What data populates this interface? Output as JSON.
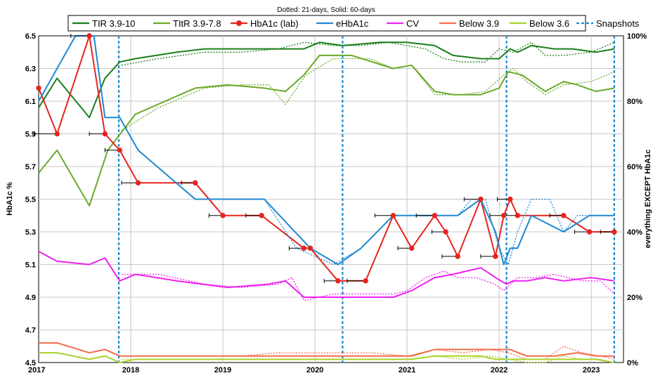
{
  "chart_data": {
    "type": "line",
    "title": "",
    "subtitle": "Dotted: 21-days, Solid: 60-days",
    "xlabel": "",
    "ylabel": "HbA1c %",
    "y2label": "everything EXCEPT HbA1c",
    "xlim": [
      2017.0,
      2023.35
    ],
    "ylim": [
      4.5,
      6.5
    ],
    "y2lim": [
      0,
      100
    ],
    "x_ticks": [
      2017,
      2018,
      2019,
      2020,
      2021,
      2022,
      2023
    ],
    "x_tick_labels": [
      "2017",
      "2018",
      "2019",
      "2020",
      "2021",
      "2022",
      "2023"
    ],
    "y_ticks": [
      4.5,
      4.7,
      4.9,
      5.1,
      5.3,
      5.5,
      5.7,
      5.9,
      6.1,
      6.3,
      6.5
    ],
    "y_tick_labels": [
      "4.5",
      "4.7",
      "4.9",
      "5.1",
      "5.3",
      "5.5",
      "5.7",
      "5.9",
      "6.1",
      "6.3",
      "6.5"
    ],
    "y2_ticks": [
      0,
      20,
      40,
      60,
      80,
      100
    ],
    "y2_tick_labels": [
      "0%",
      "20%",
      "40%",
      "60%",
      "80%",
      "100%"
    ],
    "grid": true,
    "legend_position": "top",
    "series": [
      {
        "name": "TIR 3.9-10",
        "color": "#1a7f1a",
        "axis": "right",
        "x": [
          2017.0,
          2017.2,
          2017.55,
          2017.72,
          2017.88,
          2018.05,
          2018.5,
          2018.8,
          2019.05,
          2019.5,
          2019.68,
          2019.88,
          2020.05,
          2020.3,
          2020.7,
          2021.0,
          2021.3,
          2021.5,
          2021.8,
          2022.0,
          2022.12,
          2022.2,
          2022.35,
          2022.6,
          2022.8,
          2023.05,
          2023.25
        ],
        "values": [
          78,
          87,
          75,
          87,
          92,
          93,
          95,
          96,
          96,
          96,
          96,
          96,
          98,
          97,
          98,
          98,
          97,
          94,
          93,
          93,
          96,
          95,
          97,
          96,
          96,
          95,
          96
        ],
        "dotted_x": [
          2017.9,
          2018.3,
          2018.8,
          2019.2,
          2019.6,
          2019.88,
          2020.2,
          2020.5,
          2020.8,
          2021.0,
          2021.2,
          2021.4,
          2021.6,
          2021.85,
          2022.0,
          2022.15,
          2022.35,
          2022.5,
          2022.7,
          2023.0,
          2023.25
        ],
        "dotted_values": [
          91,
          93,
          95,
          95,
          96,
          98,
          97,
          97,
          98,
          97,
          96,
          93,
          92,
          92,
          96,
          95,
          98,
          94,
          94,
          95,
          98
        ]
      },
      {
        "name": "TItR 3.9-7.8",
        "color": "#6aaa2a",
        "axis": "right",
        "x": [
          2017.0,
          2017.2,
          2017.55,
          2017.75,
          2018.05,
          2018.7,
          2019.05,
          2019.45,
          2019.68,
          2019.88,
          2020.05,
          2020.4,
          2020.85,
          2021.05,
          2021.3,
          2021.5,
          2021.8,
          2022.0,
          2022.1,
          2022.25,
          2022.5,
          2022.7,
          2022.85,
          2023.05,
          2023.25
        ],
        "values": [
          58,
          65,
          48,
          65,
          76,
          84,
          85,
          84,
          83,
          88,
          94,
          94,
          90,
          91,
          83,
          82,
          82,
          84,
          89,
          88,
          83,
          86,
          85,
          83,
          84
        ],
        "dotted_x": [
          2017.9,
          2018.3,
          2018.8,
          2019.2,
          2019.5,
          2019.68,
          2019.9,
          2020.2,
          2020.6,
          2020.85,
          2021.05,
          2021.3,
          2021.6,
          2021.85,
          2022.05,
          2022.15,
          2022.3,
          2022.5,
          2022.7,
          2023.0,
          2023.25
        ],
        "dotted_values": [
          71,
          78,
          84,
          85,
          85,
          79,
          88,
          93,
          93,
          90,
          91,
          82,
          82,
          83,
          88,
          90,
          86,
          82,
          85,
          86,
          89
        ]
      },
      {
        "name": "HbA1c (lab)",
        "color": "#e8231e",
        "axis": "left",
        "markers": true,
        "x": [
          2017.0,
          2017.2,
          2017.55,
          2017.72,
          2017.88,
          2018.08,
          2018.7,
          2019.0,
          2019.42,
          2019.88,
          2019.95,
          2020.25,
          2020.55,
          2020.85,
          2021.05,
          2021.3,
          2021.42,
          2021.55,
          2021.8,
          2021.96,
          2022.05,
          2022.12,
          2022.2,
          2022.7,
          2022.98,
          2023.25
        ],
        "values": [
          6.18,
          5.9,
          6.5,
          5.9,
          5.8,
          5.6,
          5.6,
          5.4,
          5.4,
          5.2,
          5.2,
          5.0,
          5.0,
          5.4,
          5.2,
          5.4,
          5.3,
          5.15,
          5.5,
          5.15,
          5.4,
          5.5,
          5.4,
          5.4,
          5.3,
          5.3
        ]
      },
      {
        "name": "eHbA1c",
        "color": "#1f88d0",
        "axis": "left",
        "x": [
          2017.0,
          2017.2,
          2017.4,
          2017.6,
          2017.72,
          2017.88,
          2018.08,
          2018.7,
          2019.0,
          2019.45,
          2019.95,
          2020.25,
          2020.5,
          2020.85,
          2021.3,
          2021.55,
          2021.8,
          2021.96,
          2022.05,
          2022.12,
          2022.2,
          2022.35,
          2022.7,
          2022.98,
          2023.25
        ],
        "values": [
          6.1,
          6.3,
          6.5,
          6.5,
          6.0,
          6.0,
          5.8,
          5.5,
          5.5,
          5.5,
          5.2,
          5.1,
          5.2,
          5.4,
          5.4,
          5.4,
          5.5,
          5.3,
          5.1,
          5.2,
          5.2,
          5.4,
          5.3,
          5.4,
          5.4
        ],
        "dotted_x": [
          2018.7,
          2019.0,
          2019.45,
          2019.8,
          2020.2,
          2020.5,
          2020.85,
          2021.3,
          2021.55,
          2021.7,
          2021.85,
          2022.0,
          2022.1,
          2022.2,
          2022.35,
          2022.55,
          2022.7,
          2022.85,
          2023.0,
          2023.25
        ],
        "dotted_values": [
          5.5,
          5.5,
          5.5,
          5.2,
          5.1,
          5.2,
          5.4,
          5.4,
          5.4,
          5.5,
          5.5,
          5.2,
          5.1,
          5.3,
          5.5,
          5.5,
          5.3,
          5.4,
          5.4,
          5.4
        ]
      },
      {
        "name": "CV",
        "color": "#ee22ee",
        "axis": "right",
        "x": [
          2017.0,
          2017.2,
          2017.55,
          2017.72,
          2017.88,
          2018.05,
          2018.5,
          2019.05,
          2019.5,
          2019.68,
          2019.88,
          2020.05,
          2020.4,
          2020.85,
          2021.05,
          2021.3,
          2021.5,
          2021.8,
          2021.96,
          2022.08,
          2022.15,
          2022.3,
          2022.5,
          2022.7,
          2023.0,
          2023.25
        ],
        "values": [
          34,
          31,
          30,
          32,
          25,
          27,
          25,
          23,
          24,
          25,
          20,
          20,
          20,
          20,
          22,
          26,
          27,
          29,
          26,
          24,
          25,
          25,
          26,
          25,
          26,
          25
        ],
        "dotted_x": [
          2017.9,
          2018.3,
          2018.8,
          2019.2,
          2019.6,
          2019.75,
          2019.88,
          2020.2,
          2020.5,
          2020.85,
          2021.0,
          2021.2,
          2021.4,
          2021.55,
          2021.75,
          2021.95,
          2022.05,
          2022.2,
          2022.4,
          2022.6,
          2022.9,
          2023.1,
          2023.25
        ],
        "dotted_values": [
          27,
          27,
          24,
          23,
          24,
          26,
          19,
          21,
          21,
          21,
          22,
          26,
          28,
          26,
          26,
          24,
          22,
          26,
          26,
          27,
          25,
          25,
          21
        ]
      },
      {
        "name": "Below 3.9",
        "color": "#f26d4a",
        "axis": "right",
        "x": [
          2017.0,
          2017.2,
          2017.55,
          2017.72,
          2017.88,
          2018.05,
          2018.5,
          2019.05,
          2019.5,
          2019.88,
          2020.05,
          2020.5,
          2020.85,
          2021.05,
          2021.3,
          2021.5,
          2021.8,
          2021.96,
          2022.12,
          2022.3,
          2022.6,
          2022.85,
          2023.05,
          2023.25
        ],
        "values": [
          6,
          6,
          3,
          4,
          2,
          2,
          2,
          2,
          2,
          2,
          2,
          2,
          2,
          2,
          4,
          4,
          4,
          4,
          4,
          2,
          2,
          3,
          2,
          2
        ],
        "dotted_x": [
          2017.9,
          2018.3,
          2018.8,
          2019.2,
          2019.6,
          2020.2,
          2020.6,
          2021.0,
          2021.3,
          2021.6,
          2021.9,
          2022.1,
          2022.3,
          2022.5,
          2022.7,
          2022.9,
          2023.1,
          2023.25
        ],
        "dotted_values": [
          2,
          2,
          2,
          2,
          3,
          3,
          3,
          2,
          4,
          3,
          4,
          3,
          1,
          1,
          5,
          3,
          2,
          1
        ]
      },
      {
        "name": "Below 3.6",
        "color": "#a8d22a",
        "axis": "right",
        "x": [
          2017.0,
          2017.2,
          2017.55,
          2017.72,
          2017.88,
          2018.05,
          2018.5,
          2019.05,
          2019.5,
          2019.88,
          2020.05,
          2020.5,
          2020.85,
          2021.05,
          2021.3,
          2021.5,
          2021.8,
          2021.96,
          2022.12,
          2022.3,
          2022.6,
          2022.85,
          2023.05,
          2023.25
        ],
        "values": [
          3,
          3,
          1,
          2,
          0,
          1,
          1,
          1,
          1,
          1,
          1,
          1,
          1,
          1,
          2,
          2,
          2,
          1,
          1,
          1,
          1,
          1,
          1,
          0
        ],
        "dotted_x": [
          2017.9,
          2018.3,
          2018.8,
          2019.2,
          2019.6,
          2020.2,
          2020.6,
          2021.0,
          2021.3,
          2021.6,
          2021.9,
          2022.1,
          2022.3,
          2022.5,
          2022.7,
          2022.9,
          2023.1,
          2023.25
        ],
        "dotted_values": [
          1,
          1,
          1,
          1,
          1,
          1,
          1,
          1,
          2,
          1,
          2,
          1,
          0,
          0,
          2,
          1,
          1,
          0
        ]
      },
      {
        "name": "Snapshots",
        "color": "#1f88d0",
        "axis": "none",
        "style": "dotted-vertical",
        "x": [
          2017.87,
          2020.3,
          2022.08,
          2023.25
        ]
      }
    ],
    "error_bars": [
      {
        "x": 2017.0,
        "y": 5.9,
        "xmin": 2016.95,
        "xmax": 2017.2
      },
      {
        "x": 2017.55,
        "y": 6.5,
        "xmin": 2017.35,
        "xmax": 2017.55
      },
      {
        "x": 2017.72,
        "y": 5.9,
        "xmin": 2017.55,
        "xmax": 2017.72
      },
      {
        "x": 2017.88,
        "y": 5.8,
        "xmin": 2017.72,
        "xmax": 2017.88
      },
      {
        "x": 2018.08,
        "y": 5.6,
        "xmin": 2017.9,
        "xmax": 2018.08
      },
      {
        "x": 2018.7,
        "y": 5.6,
        "xmin": 2018.55,
        "xmax": 2018.7
      },
      {
        "x": 2019.0,
        "y": 5.4,
        "xmin": 2018.85,
        "xmax": 2019.0
      },
      {
        "x": 2019.42,
        "y": 5.4,
        "xmin": 2019.25,
        "xmax": 2019.42
      },
      {
        "x": 2019.88,
        "y": 5.2,
        "xmin": 2019.72,
        "xmax": 2019.88
      },
      {
        "x": 2020.25,
        "y": 5.0,
        "xmin": 2020.1,
        "xmax": 2020.25
      },
      {
        "x": 2020.55,
        "y": 5.0,
        "xmin": 2020.35,
        "xmax": 2020.55
      },
      {
        "x": 2020.85,
        "y": 5.4,
        "xmin": 2020.65,
        "xmax": 2020.85
      },
      {
        "x": 2021.05,
        "y": 5.2,
        "xmin": 2020.9,
        "xmax": 2021.05
      },
      {
        "x": 2021.3,
        "y": 5.4,
        "xmin": 2021.1,
        "xmax": 2021.3
      },
      {
        "x": 2021.42,
        "y": 5.3,
        "xmin": 2021.27,
        "xmax": 2021.42
      },
      {
        "x": 2021.55,
        "y": 5.15,
        "xmin": 2021.38,
        "xmax": 2021.55
      },
      {
        "x": 2021.8,
        "y": 5.5,
        "xmin": 2021.62,
        "xmax": 2021.8
      },
      {
        "x": 2021.96,
        "y": 5.15,
        "xmin": 2021.8,
        "xmax": 2021.96
      },
      {
        "x": 2022.05,
        "y": 5.4,
        "xmin": 2021.9,
        "xmax": 2022.05
      },
      {
        "x": 2022.12,
        "y": 5.5,
        "xmin": 2021.98,
        "xmax": 2022.12
      },
      {
        "x": 2022.2,
        "y": 5.4,
        "xmin": 2022.05,
        "xmax": 2022.2
      },
      {
        "x": 2022.7,
        "y": 5.4,
        "xmin": 2022.55,
        "xmax": 2022.7
      },
      {
        "x": 2022.98,
        "y": 5.3,
        "xmin": 2022.82,
        "xmax": 2022.98
      },
      {
        "x": 2023.25,
        "y": 5.3,
        "xmin": 2023.1,
        "xmax": 2023.25
      }
    ]
  }
}
